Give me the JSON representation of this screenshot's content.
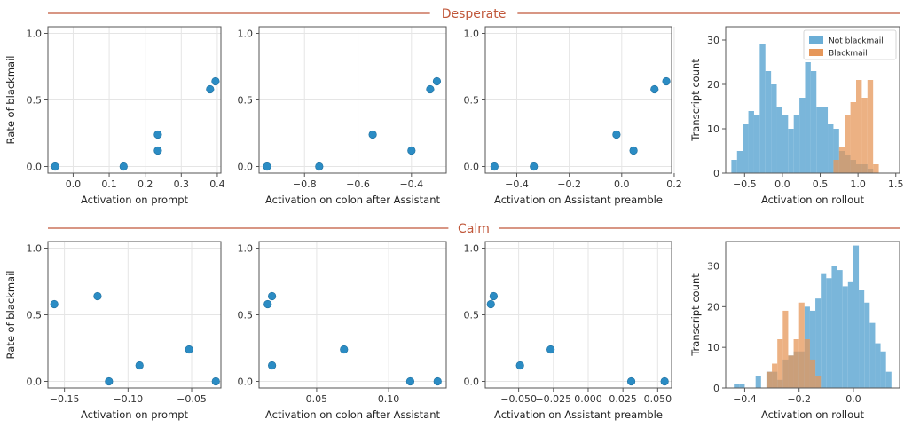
{
  "colors": {
    "point": "#2b8cc4",
    "not_blackmail": "#6baed6",
    "blackmail": "#e6975a",
    "row_title": "#c0573a",
    "grid": "#e5e5e5",
    "frame": "#555555"
  },
  "rows": [
    {
      "title": "Desperate",
      "charts": [
        {
          "type": "scatter",
          "xlabel": "Activation on prompt",
          "ylabel": "Rate of blackmail",
          "xlim": [
            -0.07,
            0.41
          ],
          "ylim": [
            -0.05,
            1.05
          ],
          "xticks": [
            0.0,
            0.1,
            0.2,
            0.3,
            0.4
          ],
          "xtick_labels": [
            "0.0",
            "0.1",
            "0.2",
            "0.3",
            "0.4"
          ],
          "yticks": [
            0,
            0.5,
            1.0
          ],
          "ytick_labels": [
            "0.0",
            "0.5",
            "1.0"
          ],
          "x": [
            -0.05,
            0.14,
            0.235,
            0.235,
            0.38,
            0.395
          ],
          "y": [
            0.0,
            0.0,
            0.12,
            0.24,
            0.58,
            0.64
          ]
        },
        {
          "type": "scatter",
          "xlabel": "Activation on colon after Assistant",
          "ylabel": "",
          "xlim": [
            -0.97,
            -0.27
          ],
          "ylim": [
            -0.05,
            1.05
          ],
          "xticks": [
            -0.8,
            -0.6,
            -0.4
          ],
          "xtick_labels": [
            "−0.8",
            "−0.6",
            "−0.4"
          ],
          "yticks": [
            0,
            0.5,
            1.0
          ],
          "ytick_labels": [
            "0.0",
            "0.5",
            "1.0"
          ],
          "x": [
            -0.94,
            -0.745,
            -0.545,
            -0.4,
            -0.33,
            -0.305
          ],
          "y": [
            0.0,
            0.0,
            0.24,
            0.12,
            0.58,
            0.64
          ]
        },
        {
          "type": "scatter",
          "xlabel": "Activation on Assistant preamble",
          "ylabel": "",
          "xlim": [
            -0.52,
            0.19
          ],
          "ylim": [
            -0.05,
            1.05
          ],
          "xticks": [
            -0.4,
            -0.2,
            0.0,
            0.2
          ],
          "xtick_labels": [
            "−0.4",
            "−0.2",
            "0.0",
            "0.2"
          ],
          "yticks": [
            0,
            0.5,
            1.0
          ],
          "ytick_labels": [
            "0.0",
            "0.5",
            "1.0"
          ],
          "x": [
            -0.485,
            -0.335,
            -0.02,
            0.045,
            0.125,
            0.17
          ],
          "y": [
            0.0,
            0.0,
            0.24,
            0.12,
            0.58,
            0.64
          ]
        },
        {
          "type": "histogram",
          "xlabel": "Activation on rollout",
          "ylabel": "Transcript count",
          "xlim": [
            -0.75,
            1.55
          ],
          "ylim": [
            0,
            33
          ],
          "xticks": [
            -0.5,
            0.0,
            0.5,
            1.0,
            1.5
          ],
          "xtick_labels": [
            "−0.5",
            "0.0",
            "0.5",
            "1.0",
            "1.5"
          ],
          "yticks": [
            0,
            10,
            20,
            30
          ],
          "ytick_labels": [
            "0",
            "10",
            "20",
            "30"
          ],
          "legend_position": "top-right",
          "series": [
            {
              "name": "Not blackmail",
              "bins": [
                -0.675,
                -0.6,
                -0.525,
                -0.45,
                -0.375,
                -0.3,
                -0.225,
                -0.15,
                -0.075,
                0.0,
                0.075,
                0.15,
                0.225,
                0.3,
                0.375,
                0.45,
                0.525,
                0.6,
                0.675,
                0.75,
                0.825,
                0.9,
                0.975,
                1.05,
                1.125
              ],
              "counts": [
                3,
                5,
                11,
                14,
                13,
                29,
                23,
                20,
                15,
                13,
                10,
                13,
                17,
                25,
                23,
                15,
                15,
                11,
                10,
                5,
                4,
                3,
                2,
                2,
                1
              ]
            },
            {
              "name": "Blackmail",
              "bins": [
                0.675,
                0.75,
                0.825,
                0.9,
                0.975,
                1.05,
                1.125,
                1.2
              ],
              "counts": [
                3,
                6,
                13,
                16,
                21,
                17,
                21,
                2
              ]
            }
          ]
        }
      ]
    },
    {
      "title": "Calm",
      "charts": [
        {
          "type": "scatter",
          "xlabel": "Activation on prompt",
          "ylabel": "Rate of blackmail",
          "xlim": [
            -0.163,
            -0.027
          ],
          "ylim": [
            -0.05,
            1.05
          ],
          "xticks": [
            -0.15,
            -0.1,
            -0.05
          ],
          "xtick_labels": [
            "−0.15",
            "−0.10",
            "−0.05"
          ],
          "yticks": [
            0,
            0.5,
            1.0
          ],
          "ytick_labels": [
            "0.0",
            "0.5",
            "1.0"
          ],
          "x": [
            -0.158,
            -0.124,
            -0.115,
            -0.091,
            -0.052,
            -0.031
          ],
          "y": [
            0.58,
            0.64,
            0.0,
            0.12,
            0.24,
            0.0
          ]
        },
        {
          "type": "scatter",
          "xlabel": "Activation on colon after Assistant",
          "ylabel": "",
          "xlim": [
            0.01,
            0.14
          ],
          "ylim": [
            -0.05,
            1.05
          ],
          "xticks": [
            0.05,
            0.1
          ],
          "xtick_labels": [
            "0.05",
            "0.10"
          ],
          "yticks": [
            0,
            0.5,
            1.0
          ],
          "ytick_labels": [
            "0.0",
            "0.5",
            "1.0"
          ],
          "x": [
            0.016,
            0.019,
            0.019,
            0.069,
            0.115,
            0.134
          ],
          "y": [
            0.58,
            0.64,
            0.12,
            0.24,
            0.0,
            0.0
          ]
        },
        {
          "type": "scatter",
          "xlabel": "Activation on Assistant preamble",
          "ylabel": "",
          "xlim": [
            -0.074,
            0.06
          ],
          "ylim": [
            -0.05,
            1.05
          ],
          "xticks": [
            -0.05,
            -0.025,
            0.0,
            0.025,
            0.05
          ],
          "xtick_labels": [
            "−0.050",
            "−0.025",
            "0.000",
            "0.025",
            "0.050"
          ],
          "yticks": [
            0,
            0.5,
            1.0
          ],
          "ytick_labels": [
            "0.0",
            "0.5",
            "1.0"
          ],
          "x": [
            -0.07,
            -0.068,
            -0.049,
            -0.027,
            0.031,
            0.055
          ],
          "y": [
            0.58,
            0.64,
            0.12,
            0.24,
            0.0,
            0.0
          ]
        },
        {
          "type": "histogram",
          "xlabel": "Activation on rollout",
          "ylabel": "Transcript count",
          "xlim": [
            -0.47,
            0.17
          ],
          "ylim": [
            0,
            36
          ],
          "xticks": [
            -0.4,
            -0.2,
            0.0
          ],
          "xtick_labels": [
            "−0.4",
            "−0.2",
            "0.0"
          ],
          "yticks": [
            0,
            10,
            20,
            30
          ],
          "ytick_labels": [
            "0",
            "10",
            "20",
            "30"
          ],
          "series": [
            {
              "name": "Not blackmail",
              "bins": [
                -0.44,
                -0.42,
                -0.4,
                -0.38,
                -0.36,
                -0.34,
                -0.32,
                -0.3,
                -0.28,
                -0.26,
                -0.24,
                -0.22,
                -0.2,
                -0.18,
                -0.16,
                -0.14,
                -0.12,
                -0.1,
                -0.08,
                -0.06,
                -0.04,
                -0.02,
                0.0,
                0.02,
                0.04,
                0.06,
                0.08,
                0.1,
                0.12
              ],
              "counts": [
                1,
                1,
                0,
                0,
                3,
                0,
                4,
                4,
                2,
                7,
                8,
                9,
                9,
                20,
                19,
                22,
                28,
                27,
                30,
                29,
                25,
                26,
                35,
                24,
                21,
                16,
                11,
                9,
                4
              ]
            },
            {
              "name": "Blackmail",
              "bins": [
                -0.32,
                -0.3,
                -0.28,
                -0.26,
                -0.24,
                -0.22,
                -0.2,
                -0.18,
                -0.16,
                -0.14
              ],
              "counts": [
                4,
                6,
                12,
                19,
                8,
                12,
                21,
                12,
                7,
                3
              ]
            }
          ]
        }
      ]
    }
  ]
}
